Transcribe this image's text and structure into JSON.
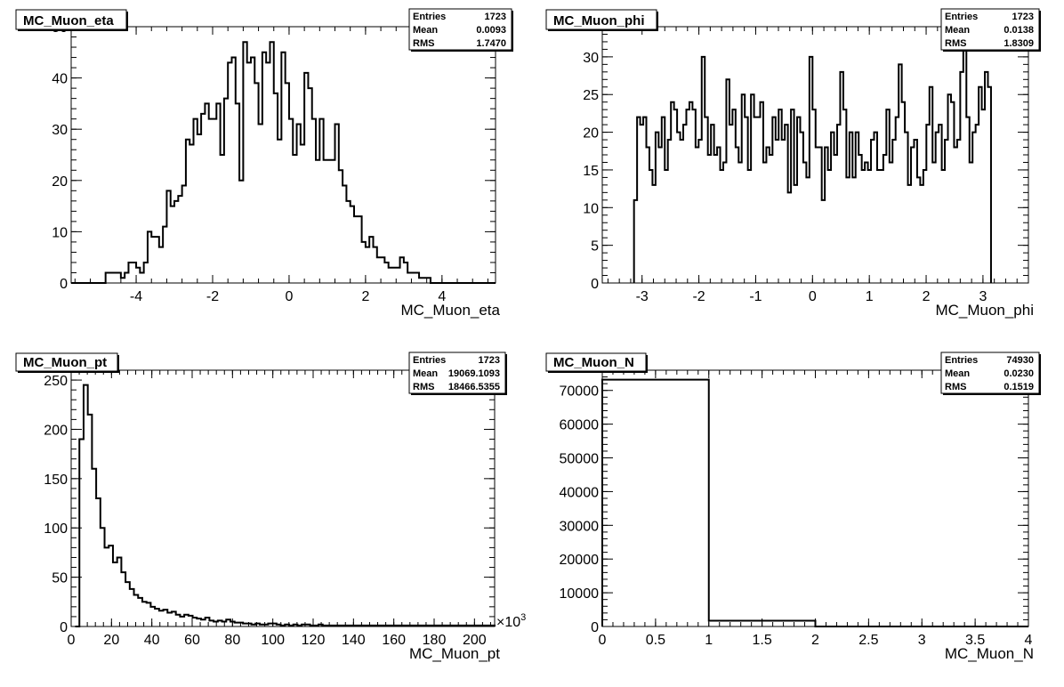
{
  "chart_data": [
    {
      "type": "bar",
      "title": "MC_Muon_eta",
      "xlabel": "MC_Muon_eta",
      "ylabel": "",
      "xlim": [
        -5.7,
        5.4
      ],
      "ylim": [
        0,
        50
      ],
      "xticks": [
        -4,
        -2,
        0,
        2,
        4
      ],
      "xtick_labels": [
        "-4",
        "-2",
        "0",
        "2",
        "4"
      ],
      "yticks": [
        0,
        10,
        20,
        30,
        40,
        50
      ],
      "ytick_labels": [
        "0",
        "10",
        "20",
        "30",
        "40",
        "50"
      ],
      "bin_edges": [
        -5.7,
        5.4
      ],
      "values": [
        0,
        0,
        0,
        0,
        0,
        0,
        0,
        0,
        0,
        2,
        2,
        2,
        2,
        1,
        2,
        4,
        4,
        3,
        2,
        4,
        10,
        9,
        9,
        7,
        11,
        18,
        15,
        16,
        17,
        19,
        28,
        27,
        32,
        29,
        33,
        35,
        32,
        32,
        35,
        25,
        36,
        43,
        44,
        35,
        20,
        47,
        43,
        44,
        39,
        31,
        45,
        43,
        47,
        37,
        28,
        45,
        39,
        32,
        25,
        31,
        27,
        41,
        38,
        32,
        24,
        32,
        24,
        24,
        24,
        31,
        22,
        19,
        16,
        15,
        13,
        13,
        8,
        7,
        9,
        7,
        5,
        5,
        4,
        3,
        3,
        3,
        5,
        4,
        2,
        2,
        2,
        1,
        1,
        1,
        0,
        0,
        0,
        0,
        0,
        0,
        0,
        0,
        0,
        0,
        0,
        0,
        0,
        0,
        0,
        0,
        0
      ],
      "stats": {
        "entries_label": "Entries",
        "entries": "1723",
        "mean_label": "Mean",
        "mean": "0.0093",
        "rms_label": "RMS",
        "rms": "1.7470"
      }
    },
    {
      "type": "bar",
      "title": "MC_Muon_phi",
      "xlabel": "MC_Muon_phi",
      "ylabel": "",
      "xlim": [
        -3.7,
        3.8
      ],
      "ylim": [
        0,
        34
      ],
      "xticks": [
        -3,
        -2,
        -1,
        0,
        1,
        2,
        3
      ],
      "xtick_labels": [
        "-3",
        "-2",
        "-1",
        "0",
        "1",
        "2",
        "3"
      ],
      "yticks": [
        0,
        5,
        10,
        15,
        20,
        25,
        30
      ],
      "ytick_labels": [
        "0",
        "5",
        "10",
        "15",
        "20",
        "25",
        "30"
      ],
      "bin_edges": [
        -3.1416,
        3.1416
      ],
      "values": [
        11,
        22,
        21,
        22,
        18,
        15,
        13,
        20,
        18,
        22,
        15,
        19,
        24,
        23,
        20,
        19,
        21,
        23,
        24,
        23,
        18,
        19,
        30,
        22,
        17,
        21,
        17,
        18,
        15,
        16,
        27,
        21,
        23,
        18,
        16,
        25,
        22,
        15,
        25,
        22,
        22,
        24,
        16,
        18,
        17,
        22,
        19,
        23,
        19,
        21,
        12,
        23,
        13,
        22,
        20,
        16,
        14,
        30,
        23,
        18,
        18,
        11,
        18,
        15,
        20,
        17,
        21,
        28,
        23,
        14,
        20,
        14,
        20,
        17,
        15,
        16,
        15,
        19,
        20,
        15,
        15,
        17,
        23,
        16,
        19,
        22,
        29,
        24,
        20,
        13,
        18,
        19,
        14,
        13,
        15,
        21,
        26,
        16,
        20,
        21,
        15,
        19,
        25,
        24,
        18,
        19,
        28,
        33,
        22,
        16,
        20,
        21,
        26,
        23,
        28,
        26
      ],
      "stats": {
        "entries_label": "Entries",
        "entries": "1723",
        "mean_label": "Mean",
        "mean": "0.0138",
        "rms_label": "RMS",
        "rms": "1.8309"
      }
    },
    {
      "type": "bar",
      "title": "MC_Muon_pt",
      "xlabel": "MC_Muon_pt",
      "ylabel": "",
      "x_multiplier": "×10",
      "x_multiplier_exp": "3",
      "xlim": [
        0,
        210
      ],
      "ylim": [
        0,
        260
      ],
      "xticks": [
        0,
        20,
        40,
        60,
        80,
        100,
        120,
        140,
        160,
        180,
        200
      ],
      "xtick_labels": [
        "0",
        "20",
        "40",
        "60",
        "80",
        "100",
        "120",
        "140",
        "160",
        "180",
        "200"
      ],
      "yticks": [
        0,
        50,
        100,
        150,
        200,
        250
      ],
      "ytick_labels": [
        "0",
        "50",
        "100",
        "150",
        "200",
        "250"
      ],
      "bin_edges": [
        2,
        210
      ],
      "values": [
        0,
        190,
        245,
        215,
        160,
        130,
        100,
        80,
        82,
        65,
        70,
        55,
        45,
        38,
        32,
        29,
        25,
        24,
        20,
        18,
        16,
        17,
        14,
        15,
        12,
        10,
        12,
        11,
        9,
        8,
        7,
        9,
        6,
        5,
        6,
        5,
        7,
        5,
        4,
        4,
        3,
        3,
        2,
        3,
        2,
        2,
        3,
        3,
        2,
        1,
        2,
        1,
        2,
        1,
        2,
        2,
        1,
        1,
        2,
        1,
        1,
        1,
        1,
        1,
        1,
        1,
        1,
        1,
        1,
        1,
        1,
        1,
        1,
        1,
        1,
        1,
        1,
        1,
        1,
        1,
        1,
        1,
        1,
        1,
        1,
        1,
        1,
        1,
        1,
        1,
        1,
        1,
        1,
        1,
        1,
        1,
        1,
        1,
        1,
        1
      ],
      "stats": {
        "entries_label": "Entries",
        "entries": "1723",
        "mean_label": "Mean",
        "mean": "19069.1093",
        "rms_label": "RMS",
        "rms": "18466.5355"
      }
    },
    {
      "type": "bar",
      "title": "MC_Muon_N",
      "xlabel": "MC_Muon_N",
      "ylabel": "",
      "xlim": [
        0,
        4
      ],
      "ylim": [
        0,
        76000
      ],
      "xticks": [
        0,
        0.5,
        1,
        1.5,
        2,
        2.5,
        3,
        3.5,
        4
      ],
      "xtick_labels": [
        "0",
        "0.5",
        "1",
        "1.5",
        "2",
        "2.5",
        "3",
        "3.5",
        "4"
      ],
      "yticks": [
        0,
        10000,
        20000,
        30000,
        40000,
        50000,
        60000,
        70000
      ],
      "ytick_labels": [
        "0",
        "10000",
        "20000",
        "30000",
        "40000",
        "50000",
        "60000",
        "70000"
      ],
      "bin_edges": [
        0,
        4
      ],
      "values": [
        73200,
        1700,
        0,
        0
      ],
      "stats": {
        "entries_label": "Entries",
        "entries": "74930",
        "mean_label": "Mean",
        "mean": "0.0230",
        "rms_label": "RMS",
        "rms": "0.1519"
      }
    }
  ]
}
